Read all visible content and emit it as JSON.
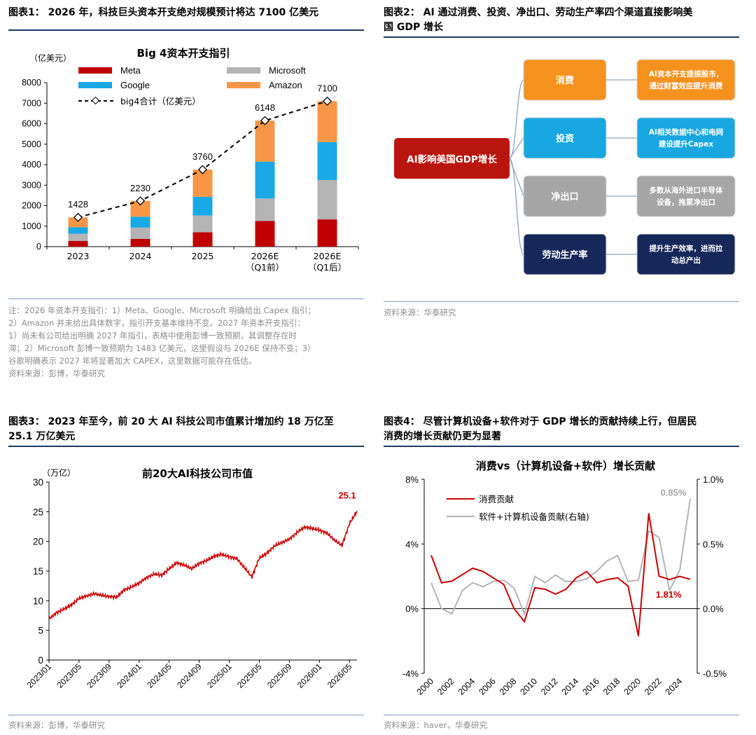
{
  "fig1": {
    "heading": "图表1： 2026 年，科技巨头资本开支绝对规模预计将达 7100 亿美元",
    "note_lines": [
      "注：2026 年资本开支指引：1）Meta、Google、Microsoft 明确给出 Capex 指引；",
      "2）Amazon 并未给出具体数字，指引开支基本维持不变。2027 年资本开支指引：",
      "1）尚未有公司给出明确 2027 年指引，表格中使用彭博一致预期，其调整存在时",
      "滞；2）Microsoft 彭博一致预期为 1483 亿美元，这里假设与 2026E 保持不变；3）",
      "谷歌明确表示 2027 年将显著加大 CAPEX，这里数据可能存在低估。"
    ],
    "source": "资料来源：彭博，华泰研究"
  },
  "fig2": {
    "heading_line1": "图表2： AI 通过消费、投资、净出口、劳动生产率四个渠道直接影响美",
    "heading_line2": "国 GDP 增长",
    "root": "AI影响美国GDP增长",
    "branches": [
      {
        "label": "消费",
        "desc": [
          "AI资本开支提振股市，",
          "通过财富效应提升消费"
        ],
        "color": "#f5921e"
      },
      {
        "label": "投资",
        "desc": [
          "AI相关数据中心和电网",
          "建设提升Capex"
        ],
        "color": "#18a7e0"
      },
      {
        "label": "净出口",
        "desc": [
          "多数从海外进口半导体",
          "设备，拖累净出口"
        ],
        "color": "#a6a6a6"
      },
      {
        "label": "劳动生产率",
        "desc": [
          "提升生产效率，进而拉",
          "动总产出"
        ],
        "color": "#16275a"
      }
    ],
    "root_color": "#b8160d",
    "source": "资料来源：华泰研究"
  },
  "fig3": {
    "heading_line1": "图表3： 2023 年至今，前 20 大 AI 科技公司市值累计增加约 18 万亿至",
    "heading_line2": "25.1 万亿美元",
    "source": "资料来源：彭博，华泰研究"
  },
  "fig4": {
    "heading_line1": "图表4： 尽管计算机设备+软件对于 GDP 增长的贡献持续上行，但居民",
    "heading_line2": "消费的增长贡献仍更为显著",
    "source": "资料来源：haver，华泰研究"
  },
  "chart_data": [
    {
      "type": "bar",
      "title": "Big 4资本开支指引",
      "ylabel": "（亿美元）",
      "ylim": [
        0,
        8000
      ],
      "yticks": [
        0,
        1000,
        2000,
        3000,
        4000,
        5000,
        6000,
        7000,
        8000
      ],
      "categories": [
        "2023",
        "2024",
        "2025",
        "2026E\n（Q1前）",
        "2026E\n（Q1后）"
      ],
      "category_lines": [
        [
          "2023"
        ],
        [
          "2024"
        ],
        [
          "2025"
        ],
        [
          "2026E",
          "（Q1前）"
        ],
        [
          "2026E",
          "（Q1后）"
        ]
      ],
      "stacked": true,
      "series": [
        {
          "name": "Meta",
          "color": "#c00000",
          "values": [
            280,
            380,
            700,
            1250,
            1330
          ]
        },
        {
          "name": "Microsoft",
          "color": "#b4b4b4",
          "values": [
            350,
            550,
            820,
            1100,
            1920
          ]
        },
        {
          "name": "Google",
          "color": "#19a9e6",
          "values": [
            320,
            530,
            910,
            1798,
            1850
          ]
        },
        {
          "name": "Amazon",
          "color": "#f79646",
          "values": [
            478,
            770,
            1330,
            2000,
            2000
          ]
        }
      ],
      "total_line": {
        "name": "big4合计（亿美元）",
        "values": [
          1428,
          2230,
          3760,
          6148,
          7100
        ],
        "labels": [
          "1428",
          "2230",
          "3760",
          "6148",
          "7100"
        ]
      },
      "legend_placement": "top"
    },
    {
      "type": "line",
      "title": "前20大AI科技公司市值",
      "ylabel": "（万亿）",
      "ylim": [
        0,
        30
      ],
      "yticks": [
        0,
        5,
        10,
        15,
        20,
        25,
        30
      ],
      "xticks": [
        "2023/01",
        "2023/05",
        "2023/09",
        "2024/01",
        "2024/05",
        "2024/09",
        "2025/01",
        "2025/05",
        "2025/09",
        "2026/01",
        "2026/05"
      ],
      "x_range": [
        "2023/01",
        "2026/06"
      ],
      "series": [
        {
          "color": "#cc0000",
          "x": [
            "2023/01",
            "2023/02",
            "2023/03",
            "2023/04",
            "2023/05",
            "2023/06",
            "2023/07",
            "2023/08",
            "2023/09",
            "2023/10",
            "2023/11",
            "2023/12",
            "2024/01",
            "2024/02",
            "2024/03",
            "2024/04",
            "2024/05",
            "2024/06",
            "2024/07",
            "2024/08",
            "2024/09",
            "2024/10",
            "2024/11",
            "2024/12",
            "2025/01",
            "2025/02",
            "2025/03",
            "2025/04",
            "2025/05",
            "2025/06",
            "2025/07",
            "2025/08",
            "2025/09",
            "2025/10",
            "2025/11",
            "2025/12",
            "2026/01",
            "2026/02",
            "2026/03",
            "2026/04",
            "2026/05",
            "2026/06"
          ],
          "values": [
            6.9,
            8.0,
            8.6,
            9.3,
            10.4,
            10.8,
            11.2,
            10.9,
            10.7,
            10.6,
            11.8,
            12.3,
            13.0,
            13.9,
            14.5,
            14.3,
            15.4,
            16.4,
            16.0,
            15.4,
            16.3,
            16.8,
            17.5,
            17.8,
            17.4,
            17.1,
            15.6,
            14.0,
            17.2,
            18.0,
            19.2,
            19.8,
            20.4,
            21.5,
            22.4,
            22.2,
            21.9,
            21.4,
            20.2,
            19.3,
            23.0,
            25.1
          ]
        }
      ],
      "annotation": "25.1"
    },
    {
      "type": "line",
      "title": "消费vs（计算机设备+软件）增长贡献",
      "yleft": {
        "ylim": [
          -4,
          8
        ],
        "ticks": [
          "-4%",
          "0%",
          "4%",
          "8%"
        ]
      },
      "yright": {
        "ylim": [
          -0.5,
          1.0
        ],
        "ticks": [
          "-0.5%",
          "0.0%",
          "0.5%",
          "1.0%"
        ]
      },
      "xticks": [
        "2000",
        "2002",
        "2004",
        "2006",
        "2008",
        "2010",
        "2012",
        "2014",
        "2016",
        "2018",
        "2020",
        "2022",
        "2024"
      ],
      "x": [
        2000,
        2001,
        2002,
        2003,
        2004,
        2005,
        2006,
        2007,
        2008,
        2009,
        2010,
        2011,
        2012,
        2013,
        2014,
        2015,
        2016,
        2017,
        2018,
        2019,
        2020,
        2021,
        2022,
        2023,
        2024,
        2025
      ],
      "series": [
        {
          "name": "消费贡献",
          "axis": "left",
          "color": "#cc0000",
          "values": [
            3.3,
            1.6,
            1.7,
            2.1,
            2.5,
            2.3,
            1.9,
            1.5,
            0.0,
            -0.8,
            1.3,
            1.2,
            0.9,
            1.2,
            1.9,
            2.3,
            1.6,
            1.8,
            1.9,
            1.4,
            -1.7,
            5.9,
            2.0,
            1.8,
            2.0,
            1.81
          ]
        },
        {
          "name": "软件+计算机设备贡献(右轴)",
          "axis": "right",
          "color": "#b4b4b4",
          "values": [
            0.2,
            0.0,
            -0.04,
            0.14,
            0.2,
            0.17,
            0.21,
            0.22,
            0.16,
            -0.04,
            0.25,
            0.2,
            0.26,
            0.21,
            0.21,
            0.23,
            0.29,
            0.37,
            0.41,
            0.21,
            0.22,
            0.6,
            0.55,
            0.14,
            0.3,
            0.85
          ]
        }
      ],
      "annotations": [
        "0.85%",
        "1.81%"
      ],
      "legend_placement": "top-left"
    }
  ]
}
